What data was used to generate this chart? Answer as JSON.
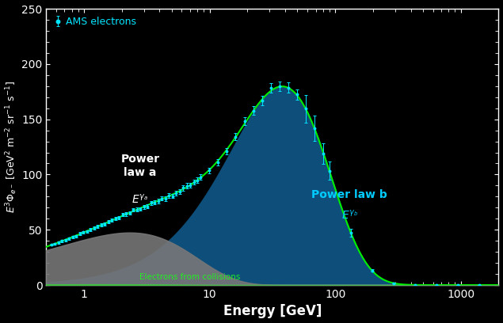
{
  "background_color": "#000000",
  "axis_color": "#ffffff",
  "tick_color": "#ffffff",
  "xlim": [
    0.5,
    2000
  ],
  "ylim": [
    0,
    250
  ],
  "yticks": [
    0,
    50,
    100,
    150,
    200,
    250
  ],
  "xlabel": "Energy [GeV]",
  "ylabel": "E$^3\\Phi_{e^-}$ [GeV$^2$ m$^{-2}$ sr$^{-1}$ s$^{-1}$]",
  "data_color": "#00e5ff",
  "fit_line_color": "#00ee00",
  "power_law_a_color": "#777777",
  "power_law_b_color": "#0d4f7a",
  "collision_color": "#22ee22",
  "legend_label": "AMS electrons",
  "label_c": "Electrons from collisions",
  "axis_fontsize": 12,
  "tick_fontsize": 10
}
